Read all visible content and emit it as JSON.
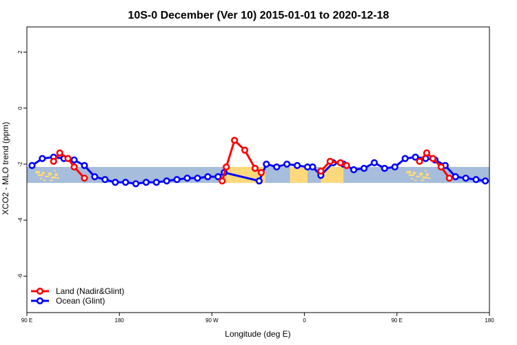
{
  "chart_data": {
    "type": "line",
    "title": "10S-0 December (Ver 10)   2015-01-01 to 2020-12-18",
    "xlabel": "Longitude (deg E)",
    "ylabel": "XCO2 - MLO trend (ppm)",
    "xlim": [
      90,
      540
    ],
    "ylim": [
      -7.3,
      2.9
    ],
    "x_ticks": [
      {
        "value": 90,
        "label": "90 E"
      },
      {
        "value": 180,
        "label": "180"
      },
      {
        "value": 270,
        "label": "90 W"
      },
      {
        "value": 360,
        "label": "0"
      },
      {
        "value": 450,
        "label": "90 E"
      },
      {
        "value": 540,
        "label": "180"
      }
    ],
    "y_ticks": [
      {
        "value": 2,
        "label": "2"
      },
      {
        "value": 0,
        "label": "0"
      },
      {
        "value": -2,
        "label": "-2"
      },
      {
        "value": -4,
        "label": "-4"
      },
      {
        "value": -6,
        "label": "-6"
      }
    ],
    "band": {
      "y_range": [
        -2.67,
        -2.1
      ],
      "ocean_color": "#a6bddb",
      "land_color": "#fdd97b"
    },
    "land_regions": [
      {
        "x": [
          97,
          122
        ],
        "style": "islands"
      },
      {
        "x": [
          282,
          322
        ],
        "style": "solid"
      },
      {
        "x": [
          346,
          363
        ],
        "style": "solid"
      },
      {
        "x": [
          376,
          398
        ],
        "style": "solid"
      },
      {
        "x": [
          458,
          483
        ],
        "style": "islands"
      }
    ],
    "legend": {
      "position": "bottom-left"
    },
    "series": [
      {
        "name": "Land (Nadir&Glint)",
        "color": "#ff0000",
        "segments": [
          {
            "x": [
              116,
              122,
              130,
              136,
              146
            ],
            "y": [
              -1.9,
              -1.6,
              -1.8,
              -2.1,
              -2.5
            ]
          },
          {
            "x": [
              280,
              284,
              292,
              302,
              312,
              318
            ],
            "y": [
              -2.6,
              -2.1,
              -1.15,
              -1.5,
              -2.15,
              -2.3
            ]
          },
          {
            "x": [
              376,
              385,
              395,
              401
            ],
            "y": [
              -2.25,
              -1.9,
              -1.95,
              -2.05
            ]
          },
          {
            "x": [
              472,
              479,
              485,
              493,
              501
            ],
            "y": [
              -1.9,
              -1.6,
              -1.8,
              -2.1,
              -2.5
            ]
          }
        ]
      },
      {
        "name": "Ocean (Glint)",
        "color": "#0000ff",
        "segments": [
          {
            "x": [
              95,
              105,
              116,
              126,
              136,
              146,
              156,
              166,
              176,
              186,
              196,
              206,
              216,
              226,
              236,
              246,
              256,
              266,
              276,
              282,
              316,
              323,
              333,
              343,
              353,
              363,
              368,
              376,
              388,
              398,
              408,
              418,
              428,
              438,
              448,
              458,
              468,
              478,
              487,
              497,
              507,
              517,
              527,
              536
            ],
            "y": [
              -2.05,
              -1.8,
              -1.75,
              -1.8,
              -1.85,
              -2.05,
              -2.45,
              -2.55,
              -2.65,
              -2.65,
              -2.7,
              -2.65,
              -2.65,
              -2.6,
              -2.55,
              -2.5,
              -2.5,
              -2.45,
              -2.45,
              -2.3,
              -2.6,
              -2.0,
              -2.1,
              -2.0,
              -2.05,
              -2.1,
              -2.1,
              -2.4,
              -1.95,
              -2.0,
              -2.2,
              -2.15,
              -1.95,
              -2.15,
              -2.1,
              -1.8,
              -1.75,
              -1.8,
              -1.85,
              -2.05,
              -2.45,
              -2.5,
              -2.55,
              -2.6
            ]
          }
        ]
      }
    ]
  }
}
